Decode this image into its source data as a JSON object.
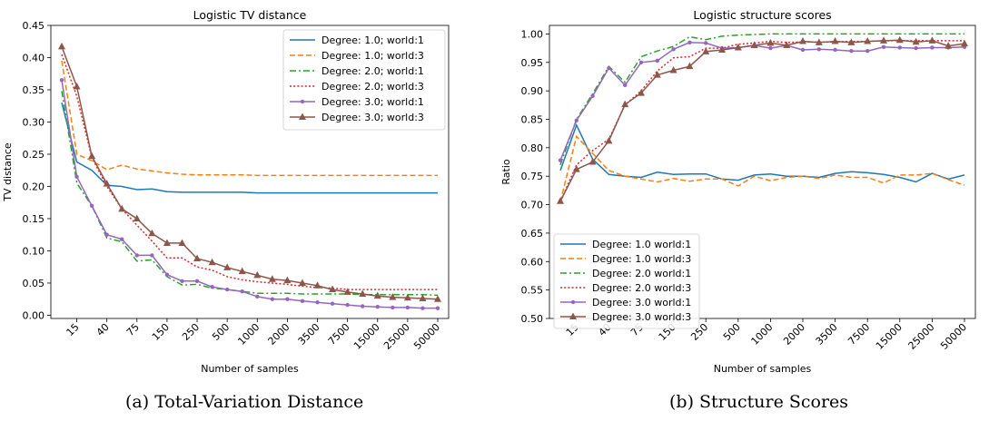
{
  "colors": {
    "blue": "#1f77b4",
    "orange": "#ff7f0e",
    "green": "#2ca02c",
    "red": "#d62728",
    "purple": "#9467bd",
    "brown": "#8c564b"
  },
  "chart_data": [
    {
      "type": "line",
      "title": "Logistic TV distance",
      "xlabel": "Number of samples",
      "ylabel": "TV distance",
      "caption": "(a) Total-Variation Distance",
      "legend_position": "top-right",
      "ylim": [
        -0.005,
        0.45
      ],
      "yticks": [
        "0.00",
        "0.05",
        "0.10",
        "0.15",
        "0.20",
        "0.25",
        "0.30",
        "0.35",
        "0.40",
        "0.45"
      ],
      "ytick_values": [
        0,
        0.05,
        0.1,
        0.15,
        0.2,
        0.25,
        0.3,
        0.35,
        0.4,
        0.45
      ],
      "x": [
        "10",
        "15",
        "25",
        "40",
        "60",
        "75",
        "100",
        "150",
        "200",
        "250",
        "400",
        "500",
        "750",
        "1000",
        "1500",
        "2000",
        "3000",
        "3500",
        "5000",
        "7500",
        "10000",
        "15000",
        "20000",
        "25000",
        "35000",
        "50000"
      ],
      "xticks": [
        "15",
        "40",
        "75",
        "150",
        "250",
        "500",
        "1000",
        "2000",
        "3500",
        "7500",
        "15000",
        "25000",
        "50000"
      ],
      "series": [
        {
          "name": "Degree: 1.0; world:1",
          "color": "blue",
          "dash": "solid",
          "marker": "none",
          "values": [
            0.33,
            0.238,
            0.225,
            0.202,
            0.2,
            0.195,
            0.196,
            0.192,
            0.191,
            0.191,
            0.191,
            0.191,
            0.191,
            0.19,
            0.19,
            0.19,
            0.19,
            0.19,
            0.19,
            0.19,
            0.19,
            0.19,
            0.19,
            0.19,
            0.19,
            0.19
          ]
        },
        {
          "name": "Degree: 1.0; world:3",
          "color": "orange",
          "dash": "dashed",
          "marker": "none",
          "values": [
            0.395,
            0.25,
            0.24,
            0.226,
            0.233,
            0.227,
            0.224,
            0.221,
            0.219,
            0.218,
            0.218,
            0.218,
            0.218,
            0.217,
            0.217,
            0.217,
            0.217,
            0.217,
            0.217,
            0.217,
            0.217,
            0.217,
            0.217,
            0.217,
            0.217,
            0.217
          ]
        },
        {
          "name": "Degree: 2.0; world:1",
          "color": "green",
          "dash": "dashdot",
          "marker": "none",
          "values": [
            0.348,
            0.205,
            0.17,
            0.12,
            0.114,
            0.084,
            0.086,
            0.06,
            0.047,
            0.048,
            0.042,
            0.04,
            0.037,
            0.034,
            0.034,
            0.034,
            0.033,
            0.033,
            0.033,
            0.033,
            0.032,
            0.032,
            0.032,
            0.032,
            0.032,
            0.031
          ]
        },
        {
          "name": "Degree: 2.0; world:3",
          "color": "red",
          "dash": "dotted",
          "marker": "none",
          "values": [
            0.405,
            0.34,
            0.245,
            0.2,
            0.165,
            0.14,
            0.115,
            0.089,
            0.089,
            0.075,
            0.07,
            0.06,
            0.055,
            0.052,
            0.05,
            0.048,
            0.045,
            0.043,
            0.042,
            0.04,
            0.04,
            0.04,
            0.04,
            0.04,
            0.04,
            0.04
          ]
        },
        {
          "name": "Degree: 3.0; world:1",
          "color": "purple",
          "dash": "solid",
          "marker": "dot",
          "values": [
            0.365,
            0.215,
            0.17,
            0.125,
            0.118,
            0.093,
            0.093,
            0.063,
            0.053,
            0.053,
            0.044,
            0.04,
            0.037,
            0.029,
            0.025,
            0.025,
            0.022,
            0.02,
            0.018,
            0.016,
            0.014,
            0.013,
            0.012,
            0.012,
            0.011,
            0.011
          ]
        },
        {
          "name": "Degree: 3.0; world:3",
          "color": "brown",
          "dash": "solid",
          "marker": "triangle",
          "values": [
            0.417,
            0.355,
            0.247,
            0.204,
            0.165,
            0.15,
            0.127,
            0.112,
            0.112,
            0.088,
            0.082,
            0.074,
            0.068,
            0.062,
            0.056,
            0.054,
            0.05,
            0.046,
            0.04,
            0.036,
            0.033,
            0.03,
            0.028,
            0.027,
            0.026,
            0.025
          ]
        }
      ]
    },
    {
      "type": "line",
      "title": "Logistic structure scores",
      "xlabel": "Number of samples",
      "ylabel": "Ratio",
      "caption": "(b) Structure Scores",
      "legend_position": "bottom-left",
      "ylim": [
        0.5,
        1.015
      ],
      "yticks": [
        "0.50",
        "0.55",
        "0.60",
        "0.65",
        "0.70",
        "0.75",
        "0.80",
        "0.85",
        "0.90",
        "0.95",
        "1.00"
      ],
      "ytick_values": [
        0.5,
        0.55,
        0.6,
        0.65,
        0.7,
        0.75,
        0.8,
        0.85,
        0.9,
        0.95,
        1.0
      ],
      "x": [
        "10",
        "15",
        "25",
        "40",
        "60",
        "75",
        "100",
        "150",
        "200",
        "250",
        "400",
        "500",
        "750",
        "1000",
        "1500",
        "2000",
        "3000",
        "3500",
        "5000",
        "7500",
        "10000",
        "15000",
        "20000",
        "25000",
        "35000",
        "50000"
      ],
      "xticks": [
        "15",
        "40",
        "75",
        "150",
        "250",
        "500",
        "1000",
        "2000",
        "3500",
        "7500",
        "15000",
        "25000",
        "50000"
      ],
      "series": [
        {
          "name": "Degree: 1.0 world:1",
          "color": "blue",
          "dash": "solid",
          "marker": "none",
          "values": [
            0.76,
            0.84,
            0.78,
            0.753,
            0.75,
            0.748,
            0.757,
            0.753,
            0.754,
            0.754,
            0.745,
            0.743,
            0.752,
            0.754,
            0.75,
            0.75,
            0.748,
            0.755,
            0.758,
            0.756,
            0.753,
            0.748,
            0.74,
            0.755,
            0.745,
            0.752
          ]
        },
        {
          "name": "Degree: 1.0 world:3",
          "color": "orange",
          "dash": "dashed",
          "marker": "none",
          "values": [
            0.705,
            0.82,
            0.79,
            0.76,
            0.75,
            0.745,
            0.74,
            0.746,
            0.741,
            0.745,
            0.745,
            0.733,
            0.75,
            0.742,
            0.748,
            0.75,
            0.746,
            0.752,
            0.748,
            0.748,
            0.738,
            0.752,
            0.752,
            0.755,
            0.744,
            0.734
          ]
        },
        {
          "name": "Degree: 2.0 world:1",
          "color": "green",
          "dash": "dashdot",
          "marker": "none",
          "values": [
            0.77,
            0.85,
            0.895,
            0.943,
            0.915,
            0.96,
            0.97,
            0.978,
            0.995,
            0.99,
            0.996,
            0.998,
            0.999,
            1.0,
            1.0,
            1.0,
            1.0,
            1.0,
            1.0,
            1.0,
            1.0,
            1.0,
            1.0,
            1.0,
            1.0,
            1.0
          ]
        },
        {
          "name": "Degree: 2.0 world:3",
          "color": "red",
          "dash": "dotted",
          "marker": "none",
          "values": [
            0.705,
            0.77,
            0.795,
            0.815,
            0.875,
            0.9,
            0.935,
            0.958,
            0.96,
            0.975,
            0.975,
            0.982,
            0.984,
            0.987,
            0.985,
            0.986,
            0.986,
            0.986,
            0.987,
            0.987,
            0.988,
            0.988,
            0.988,
            0.988,
            0.988,
            0.988
          ]
        },
        {
          "name": "Degree: 3.0 world:1",
          "color": "purple",
          "dash": "solid",
          "marker": "dot",
          "values": [
            0.778,
            0.848,
            0.891,
            0.94,
            0.91,
            0.95,
            0.953,
            0.973,
            0.985,
            0.984,
            0.975,
            0.976,
            0.98,
            0.975,
            0.98,
            0.972,
            0.973,
            0.972,
            0.97,
            0.97,
            0.977,
            0.976,
            0.975,
            0.976,
            0.976,
            0.977
          ]
        },
        {
          "name": "Degree: 3.0 world:3",
          "color": "brown",
          "dash": "solid",
          "marker": "triangle",
          "values": [
            0.706,
            0.762,
            0.775,
            0.812,
            0.876,
            0.896,
            0.928,
            0.936,
            0.943,
            0.969,
            0.972,
            0.976,
            0.98,
            0.984,
            0.98,
            0.987,
            0.985,
            0.987,
            0.985,
            0.987,
            0.988,
            0.989,
            0.986,
            0.988,
            0.979,
            0.983
          ]
        }
      ]
    }
  ]
}
